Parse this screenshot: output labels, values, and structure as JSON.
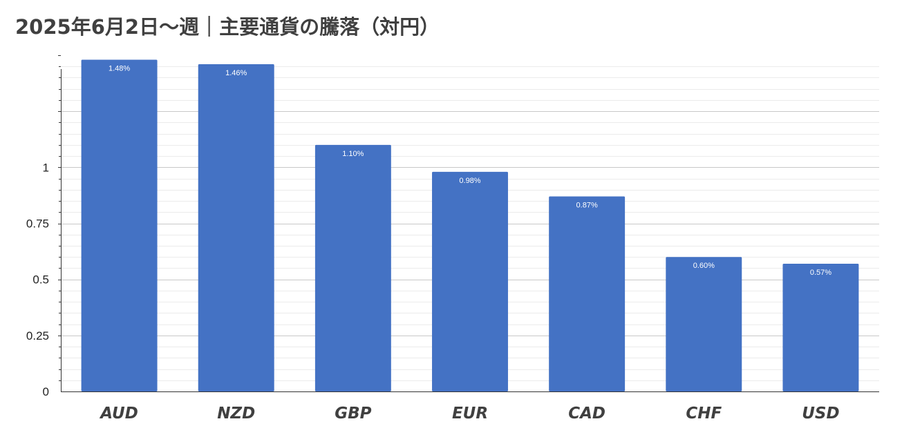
{
  "chart_data": {
    "type": "bar",
    "title": "2025年6月2日～週｜主要通貨の騰落（対円）",
    "xlabel": "",
    "ylabel": "",
    "categories": [
      "AUD",
      "NZD",
      "GBP",
      "EUR",
      "CAD",
      "CHF",
      "USD"
    ],
    "values": [
      1.48,
      1.46,
      1.1,
      0.98,
      0.87,
      0.6,
      0.57
    ],
    "data_labels": [
      "1.48%",
      "1.46%",
      "1.10%",
      "0.98%",
      "0.87%",
      "0.60%",
      "0.57%"
    ],
    "y_ticks": [
      0,
      0.25,
      0.5,
      0.75,
      1
    ],
    "y_tick_labels": [
      "0",
      "0.25",
      "0.5",
      "0.75",
      "1"
    ],
    "ylim": [
      0,
      1.5
    ],
    "grid": true,
    "legend": "none",
    "bar_color": "#4472C4"
  }
}
